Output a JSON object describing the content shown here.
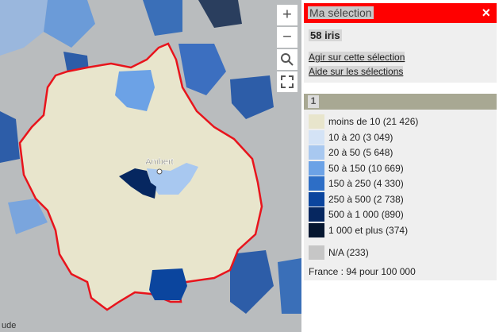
{
  "map": {
    "place_label": "Ambert",
    "attribution": "ude",
    "controls": {
      "zoom_in": "+",
      "zoom_out": "−"
    }
  },
  "selection": {
    "title": "Ma sélection",
    "close": "×",
    "count": "58 iris",
    "links": [
      "Agir sur cette sélection",
      "Aide sur les sélections"
    ]
  },
  "legend": {
    "tab": "1",
    "items": [
      {
        "label": "moins de 10 (21 426)",
        "color": "#e8e5cc"
      },
      {
        "label": "10 à 20 (3 049)",
        "color": "#d4e3f6"
      },
      {
        "label": "20 à 50 (5 648)",
        "color": "#a8c8f0"
      },
      {
        "label": "50 à 150 (10 669)",
        "color": "#6ca2e6"
      },
      {
        "label": "150 à 250 (4 330)",
        "color": "#2d6ec6"
      },
      {
        "label": "250 à 500 (2 738)",
        "color": "#0b459e"
      },
      {
        "label": "500 à 1 000 (890)",
        "color": "#062760"
      },
      {
        "label": "1 000 et plus (374)",
        "color": "#051630"
      }
    ],
    "na": {
      "label": "N/A (233)",
      "color": "#c6c6c6"
    },
    "note": "France : 94 pour 100 000"
  }
}
